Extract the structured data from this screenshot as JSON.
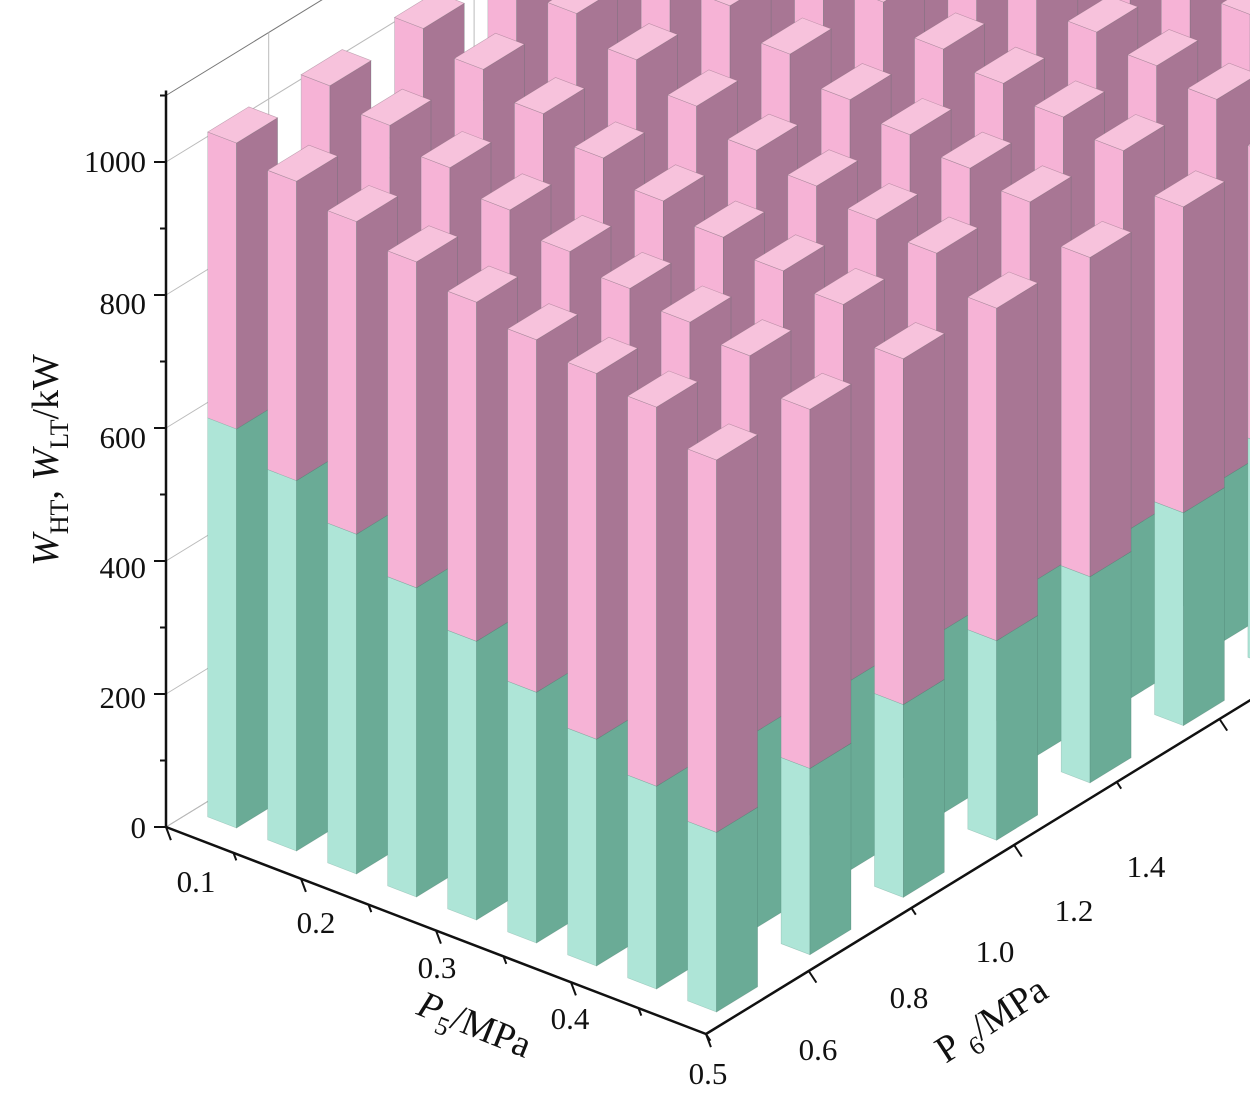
{
  "chart_data": {
    "type": "bar3d-stacked",
    "axes": {
      "x": {
        "label_main": "P",
        "label_sub": "5",
        "label_unit": "/MPa",
        "values": [
          0.1,
          0.15,
          0.2,
          0.25,
          0.3,
          0.35,
          0.4,
          0.45,
          0.5
        ],
        "ticks": [
          "0.1",
          "0.2",
          "0.3",
          "0.4",
          "0.5"
        ],
        "range": [
          0.1,
          0.5
        ]
      },
      "y": {
        "label_main": "P ",
        "label_sub": "6",
        "label_unit": "/MPa",
        "values": [
          0.5,
          0.6,
          0.7,
          0.8,
          0.9,
          1.0,
          1.1,
          1.2,
          1.3,
          1.4,
          1.5
        ],
        "ticks": [
          "0.6",
          "0.8",
          "1.0",
          "1.2",
          "1.4"
        ],
        "range": [
          0.5,
          1.5
        ]
      },
      "z": {
        "label_w1": "W",
        "label_sub1": "HT",
        "label_sep": ", ",
        "label_w2": "W",
        "label_sub2": "LT",
        "label_unit": "/kW",
        "ticks": [
          "0",
          "200",
          "400",
          "600",
          "800",
          "1000"
        ],
        "range": [
          0,
          1100
        ]
      }
    },
    "series": [
      {
        "label": "W_HT",
        "color": "#aee5d7",
        "side_color": "#6aab96",
        "top_color": "#c8eee3"
      },
      {
        "label": "W_LT",
        "color": "#f6b3d6",
        "side_color": "#a87694",
        "top_color": "#f7c2dc"
      }
    ],
    "ht_values": [
      [
        600,
        599,
        598,
        597,
        596,
        595,
        594,
        593,
        592,
        591,
        590
      ],
      [
        557,
        554,
        551,
        548,
        545,
        542,
        539,
        536,
        533,
        530,
        527
      ],
      [
        511,
        505,
        499,
        493,
        487,
        481,
        475,
        469,
        463,
        457,
        451
      ],
      [
        465,
        456,
        447,
        438,
        429,
        420,
        411,
        402,
        393,
        384,
        375
      ],
      [
        419,
        408,
        397,
        386,
        375,
        364,
        353,
        342,
        331,
        320,
        309
      ],
      [
        377,
        367,
        357,
        347,
        337,
        327,
        317,
        307,
        297,
        287,
        277
      ],
      [
        341,
        331,
        321,
        311,
        301,
        291,
        281,
        271,
        261,
        251,
        241
      ],
      [
        305,
        295,
        285,
        275,
        265,
        255,
        245,
        235,
        225,
        215,
        205
      ],
      [
        270,
        280,
        290,
        300,
        310,
        320,
        330,
        340,
        350,
        360,
        375
      ]
    ],
    "lt_values": [
      [
        430,
        431,
        432,
        433,
        434,
        435,
        436,
        437,
        438,
        439,
        440
      ],
      [
        450,
        451,
        452,
        453,
        454,
        455,
        456,
        457,
        458,
        459,
        460
      ],
      [
        470,
        471,
        472,
        473,
        474,
        475,
        476,
        477,
        478,
        479,
        480
      ],
      [
        490,
        491,
        492,
        493,
        494,
        495,
        496,
        497,
        498,
        499,
        500
      ],
      [
        510,
        511,
        512,
        513,
        514,
        515,
        516,
        517,
        518,
        519,
        520
      ],
      [
        530,
        531,
        532,
        533,
        534,
        535,
        536,
        537,
        538,
        539,
        540
      ],
      [
        550,
        551,
        552,
        553,
        554,
        555,
        556,
        557,
        558,
        559,
        560
      ],
      [
        570,
        571,
        572,
        573,
        574,
        575,
        576,
        577,
        578,
        579,
        580
      ],
      [
        560,
        540,
        520,
        500,
        480,
        460,
        440,
        420,
        400,
        380,
        360
      ]
    ]
  }
}
